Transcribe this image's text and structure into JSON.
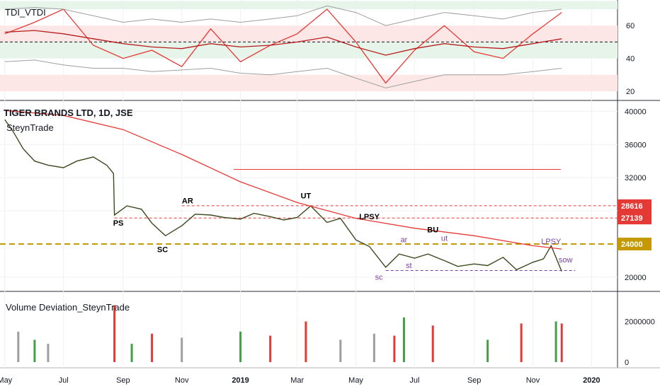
{
  "chart_data": [
    {
      "type": "line",
      "title": "TDI_VTDI",
      "ylim": [
        17,
        73
      ],
      "y_ticks": [
        20,
        40,
        60
      ],
      "x": [
        "2018-05-01",
        "2018-06-01",
        "2018-07-01",
        "2018-08-01",
        "2018-09-01",
        "2018-10-01",
        "2018-11-01",
        "2018-12-01",
        "2019-01-01",
        "2019-02-01",
        "2019-03-01",
        "2019-04-01",
        "2019-05-01",
        "2019-06-01",
        "2019-07-01",
        "2019-08-01",
        "2019-09-01",
        "2019-10-01",
        "2019-11-01",
        "2019-12-01"
      ],
      "series": [
        {
          "values": [
            55,
            62,
            70,
            48,
            40,
            45,
            35,
            58,
            38,
            48,
            55,
            70,
            50,
            25,
            45,
            60,
            44,
            40,
            55,
            68
          ]
        },
        {
          "values": [
            56,
            57,
            55,
            52,
            49,
            47,
            46,
            49,
            47,
            48,
            50,
            53,
            47,
            42,
            46,
            49,
            47,
            46,
            49,
            52
          ]
        },
        {
          "values": [
            70,
            71,
            70,
            66,
            62,
            64,
            62,
            64,
            62,
            64,
            66,
            72,
            68,
            60,
            64,
            68,
            66,
            64,
            68,
            70
          ]
        },
        {
          "values": [
            38,
            39,
            36,
            34,
            34,
            32,
            33,
            34,
            31,
            30,
            32,
            34,
            28,
            22,
            26,
            30,
            30,
            30,
            32,
            34
          ]
        }
      ],
      "reference_lines": [
        50
      ],
      "bands": [
        {
          "from": 70,
          "to": 75
        },
        {
          "from": 50,
          "to": 60
        },
        {
          "from": 40,
          "to": 50
        },
        {
          "from": 20,
          "to": 30
        }
      ]
    },
    {
      "type": "line",
      "title": "TIGER BRANDS LTD, 1D, JSE",
      "subtitle": "SteynTrade",
      "ylim": [
        18800,
        40800
      ],
      "y_ticks": [
        20000,
        24000,
        28000,
        32000,
        36000,
        40000
      ],
      "y_labels": [
        "20000",
        "",
        "",
        "32000",
        "36000",
        "40000"
      ],
      "x_ticks": [
        "May",
        "Jul",
        "Sep",
        "Nov",
        "2019",
        "Mar",
        "May",
        "Jul",
        "Sep",
        "Nov",
        "2020"
      ],
      "x_tick_dates": [
        "2018-05-01",
        "2018-07-01",
        "2018-09-01",
        "2018-11-01",
        "2019-01-01",
        "2019-03-01",
        "2019-05-01",
        "2019-07-01",
        "2019-09-01",
        "2019-11-01",
        "2020-01-01"
      ],
      "series": [
        {
          "x": [
            "2018-05-01",
            "2018-05-10",
            "2018-05-20",
            "2018-06-01",
            "2018-06-15",
            "2018-07-01",
            "2018-07-15",
            "2018-08-01",
            "2018-08-15",
            "2018-08-22",
            "2018-08-23",
            "2018-09-05",
            "2018-09-20",
            "2018-10-01",
            "2018-10-15",
            "2018-11-01",
            "2018-11-15",
            "2018-12-01",
            "2018-12-15",
            "2019-01-01",
            "2019-01-15",
            "2019-02-01",
            "2019-02-15",
            "2019-03-01",
            "2019-03-15",
            "2019-04-01",
            "2019-04-15",
            "2019-05-01",
            "2019-05-15",
            "2019-06-01",
            "2019-06-15",
            "2019-07-01",
            "2019-07-15",
            "2019-08-01",
            "2019-08-15",
            "2019-09-01",
            "2019-09-15",
            "2019-10-01",
            "2019-10-15",
            "2019-11-01",
            "2019-11-12",
            "2019-11-20",
            "2019-12-01"
          ],
          "values": [
            39000,
            37500,
            35500,
            34000,
            33500,
            33200,
            34000,
            34500,
            33500,
            32500,
            27500,
            28600,
            28200,
            26500,
            25000,
            26200,
            27600,
            27500,
            27200,
            27000,
            27700,
            27300,
            26900,
            27200,
            28600,
            26600,
            27100,
            24500,
            23700,
            21200,
            22800,
            22300,
            22800,
            22000,
            21300,
            21600,
            21400,
            22400,
            20900,
            21800,
            22200,
            23800,
            20700
          ]
        },
        {
          "x": [
            "2018-05-01",
            "2018-07-01",
            "2018-09-01",
            "2018-11-01",
            "2019-01-01",
            "2019-03-01",
            "2019-05-01",
            "2019-07-01",
            "2019-09-01",
            "2019-11-01",
            "2019-12-01"
          ],
          "values": [
            40100,
            39500,
            37800,
            34800,
            31500,
            29000,
            27100,
            25900,
            25000,
            23800,
            23400
          ]
        }
      ],
      "horizontal_levels": [
        {
          "value": 33000,
          "style": "solid"
        },
        {
          "value": 28616,
          "label": "28616",
          "style": "dashed"
        },
        {
          "value": 27139,
          "label": "27139",
          "style": "dashed"
        },
        {
          "value": 24000,
          "label": "24000",
          "style": "dashed"
        },
        {
          "value": 20800,
          "style": "dashed"
        }
      ],
      "annotations": [
        {
          "text": "PS",
          "x": "2018-08-27",
          "y": 26200,
          "color": "#000000"
        },
        {
          "text": "SC",
          "x": "2018-10-12",
          "y": 23000,
          "color": "#000000"
        },
        {
          "text": "AR",
          "x": "2018-11-07",
          "y": 28900,
          "color": "#000000"
        },
        {
          "text": "UT",
          "x": "2019-03-10",
          "y": 29500,
          "color": "#000000"
        },
        {
          "text": "LPSY",
          "x": "2019-05-15",
          "y": 27000,
          "color": "#000000"
        },
        {
          "text": "sc",
          "x": "2019-05-25",
          "y": 19700,
          "color": "#7b3f9e"
        },
        {
          "text": "ar",
          "x": "2019-06-20",
          "y": 24200,
          "color": "#7b3f9e"
        },
        {
          "text": "st",
          "x": "2019-06-25",
          "y": 21100,
          "color": "#7b3f9e"
        },
        {
          "text": "BU",
          "x": "2019-07-20",
          "y": 25400,
          "color": "#000000"
        },
        {
          "text": "ut",
          "x": "2019-08-01",
          "y": 24400,
          "color": "#7b3f9e"
        },
        {
          "text": "LPSY",
          "x": "2019-11-20",
          "y": 24000,
          "color": "#7b3f9e"
        },
        {
          "text": "sow",
          "x": "2019-12-05",
          "y": 21800,
          "color": "#7b3f9e"
        }
      ]
    },
    {
      "type": "bar",
      "title": "Volume Deviation_SteynTrade",
      "ylim": [
        0,
        3200000
      ],
      "y_ticks": [
        0,
        2000000
      ],
      "y_labels": [
        "0",
        "2000000"
      ],
      "series": [
        {
          "x": [
            "2018-05-15",
            "2018-06-01",
            "2018-06-15",
            "2018-08-23",
            "2018-09-10",
            "2018-10-01",
            "2018-11-01",
            "2019-01-01",
            "2019-02-01",
            "2019-03-10",
            "2019-04-15",
            "2019-05-20",
            "2019-06-10",
            "2019-06-20",
            "2019-07-20",
            "2019-09-15",
            "2019-10-20",
            "2019-11-25",
            "2019-12-01"
          ],
          "values": [
            1500000,
            1100000,
            900000,
            2800000,
            900000,
            1400000,
            1200000,
            1500000,
            1300000,
            2000000,
            1100000,
            1400000,
            1300000,
            2200000,
            1800000,
            1100000,
            1900000,
            2000000,
            1900000
          ]
        }
      ]
    }
  ]
}
